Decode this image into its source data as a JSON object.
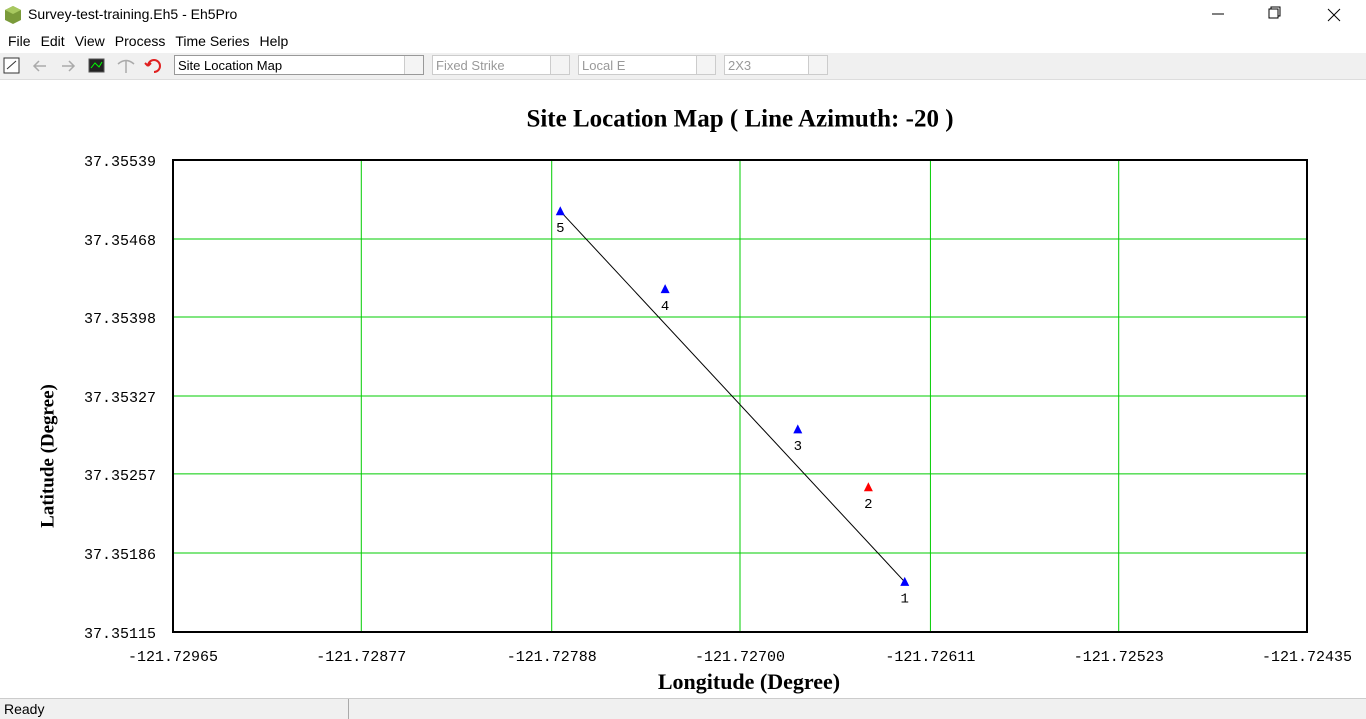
{
  "window": {
    "title": "Survey-test-training.Eh5 - Eh5Pro"
  },
  "menu": [
    "File",
    "Edit",
    "View",
    "Process",
    "Time Series",
    "Help"
  ],
  "toolbar": {
    "combos": [
      "Site Location Map",
      "Fixed Strike",
      "Local E",
      "2X3"
    ]
  },
  "status": "Ready",
  "chart_data": {
    "type": "scatter",
    "title": "Site Location Map ( Line Azimuth: -20 )",
    "x_label": "Longitude (Degree)",
    "y_label": "Latitude (Degree)",
    "x": [
      -121.72623,
      -121.7264,
      -121.72673,
      -121.72735,
      -121.72784
    ],
    "values": [
      37.3516,
      37.35245,
      37.35297,
      37.35423,
      37.35493
    ],
    "point_labels": [
      "1",
      "2",
      "3",
      "4",
      "5"
    ],
    "point_colors": [
      "#0000ff",
      "#ff0000",
      "#0000ff",
      "#0000ff",
      "#0000ff"
    ],
    "xlim": [
      -121.72965,
      -121.72435
    ],
    "xticks": [
      -121.72965,
      -121.72877,
      -121.72788,
      {
        "value": -121.727,
        "label": "-121.72700"
      },
      -121.72611,
      -121.72523,
      -121.72435
    ],
    "ylim": [
      37.35115,
      37.35539
    ],
    "yticks": [
      37.35115,
      37.35186,
      37.35257,
      37.35327,
      37.35398,
      37.35468,
      37.35539
    ],
    "grid": true,
    "grid_color": "#00cc00"
  }
}
